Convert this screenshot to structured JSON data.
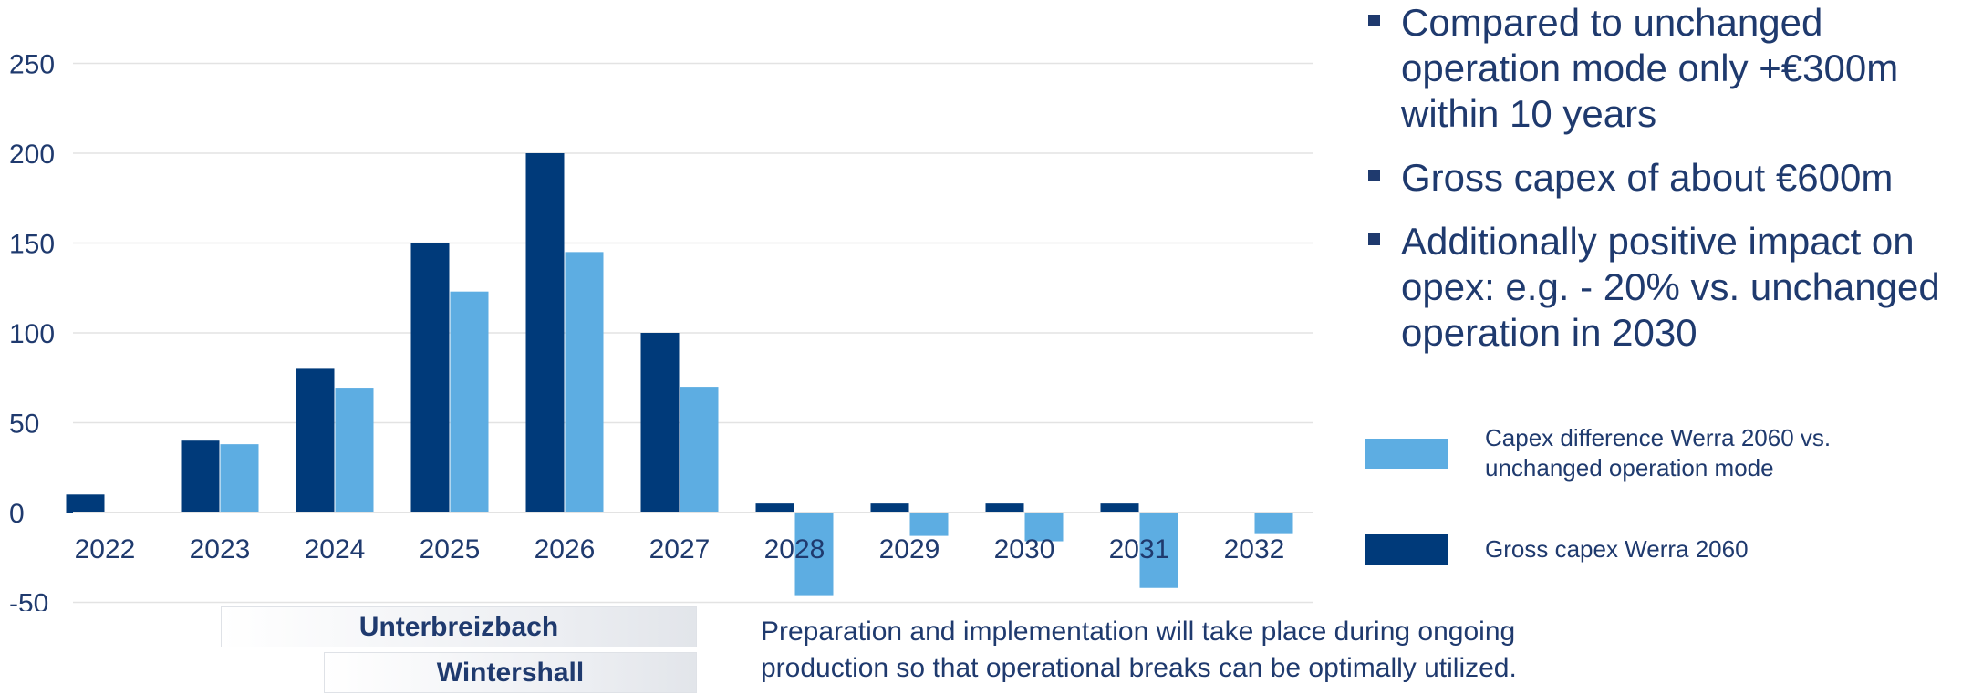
{
  "colors": {
    "gross": "#003a7a",
    "difference": "#5dade2",
    "text": "#1f3a6e",
    "grid": "#e3e3e3"
  },
  "chart_data": {
    "type": "bar",
    "categories": [
      "2022",
      "2023",
      "2024",
      "2025",
      "2026",
      "2027",
      "2028",
      "2029",
      "2030",
      "2031",
      "2032"
    ],
    "series": [
      {
        "name": "Gross capex Werra 2060",
        "color": "#003a7a",
        "values": [
          10,
          40,
          80,
          150,
          200,
          100,
          5,
          5,
          5,
          5,
          0
        ]
      },
      {
        "name": "Capex difference Werra 2060 vs. unchanged operation mode",
        "color": "#5dade2",
        "values": [
          0,
          38,
          69,
          123,
          145,
          70,
          -46,
          -13,
          -16,
          -42,
          -12
        ]
      }
    ],
    "yticks": [
      -50,
      0,
      50,
      100,
      150,
      200,
      250
    ],
    "ylim": [
      -50,
      250
    ],
    "grid": true,
    "legend_position": "right"
  },
  "bullets": [
    "Compared to unchanged operation mode only +€300m within 10 years",
    "Gross capex of about €600m",
    "Additionally positive impact on opex: e.g. - 20% vs. unchanged operation in 2030"
  ],
  "legend": {
    "difference_label": "Capex difference Werra 2060 vs. unchanged operation mode",
    "gross_label": "Gross capex Werra 2060"
  },
  "bands": {
    "first": "Unterbreizbach",
    "second": "Wintershall"
  },
  "footnote": "Preparation and implementation will take place during ongoing production so that operational breaks can be optimally utilized."
}
